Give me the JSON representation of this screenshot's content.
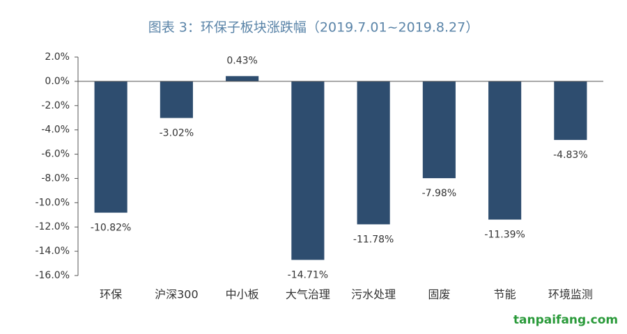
{
  "chart_data": {
    "type": "bar",
    "title": "图表 3：环保子板块涨跌幅（2019.7.01~2019.8.27）",
    "categories": [
      "环保",
      "沪深300",
      "中小板",
      "大气治理",
      "污水处理",
      "固废",
      "节能",
      "环境监测"
    ],
    "values": [
      -10.82,
      -3.02,
      0.43,
      -14.71,
      -11.78,
      -7.98,
      -11.39,
      -4.83
    ],
    "value_labels": [
      "-10.82%",
      "-3.02%",
      "0.43%",
      "-14.71%",
      "-11.78%",
      "-7.98%",
      "-11.39%",
      "-4.83%"
    ],
    "color": "#2e4d6f",
    "ylim": [
      -16,
      2
    ],
    "yticks": [
      {
        "value": 2,
        "label": "2.0%"
      },
      {
        "value": 0,
        "label": "0.0%"
      },
      {
        "value": -2,
        "label": "-2.0%"
      },
      {
        "value": -4,
        "label": "-4.0%"
      },
      {
        "value": -6,
        "label": "-6.0%"
      },
      {
        "value": -8,
        "label": "-8.0%"
      },
      {
        "value": -10,
        "label": "-10.0%"
      },
      {
        "value": -12,
        "label": "-12.0%"
      },
      {
        "value": -14,
        "label": "-14.0%"
      },
      {
        "value": -16,
        "label": "-16.0%"
      }
    ],
    "grid": false,
    "watermark": "tanpaifang.com"
  }
}
